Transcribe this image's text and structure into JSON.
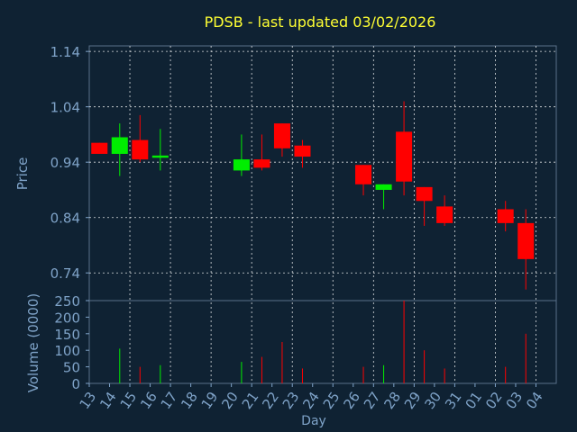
{
  "title": "PDSB - last updated 03/02/2026",
  "colors": {
    "background": "#0f2233",
    "axis_text": "#7fa3c8",
    "title": "#ffff33",
    "up": "#00ee00",
    "down": "#ff0000",
    "grid": "#ffffff"
  },
  "chart_data": [
    {
      "type": "candlestick",
      "ylabel": "Price",
      "ylim": [
        0.69,
        1.15
      ],
      "yticks": [
        "1.14",
        "1.04",
        "0.94",
        "0.84",
        "0.74"
      ],
      "categories": [
        "13",
        "14",
        "15",
        "16",
        "17",
        "18",
        "19",
        "20",
        "21",
        "22",
        "23",
        "24",
        "25",
        "26",
        "27",
        "28",
        "29",
        "30",
        "31",
        "01",
        "02",
        "03",
        "04"
      ],
      "candles": [
        {
          "x": "13",
          "open": 0.975,
          "high": 0.975,
          "low": 0.955,
          "close": 0.955
        },
        {
          "x": "14",
          "open": 0.955,
          "high": 1.01,
          "low": 0.915,
          "close": 0.985
        },
        {
          "x": "15",
          "open": 0.98,
          "high": 1.025,
          "low": 0.94,
          "close": 0.945
        },
        {
          "x": "16",
          "open": 0.948,
          "high": 1.0,
          "low": 0.925,
          "close": 0.952
        },
        {
          "x": "20",
          "open": 0.925,
          "high": 0.99,
          "low": 0.915,
          "close": 0.945
        },
        {
          "x": "21",
          "open": 0.945,
          "high": 0.99,
          "low": 0.925,
          "close": 0.93
        },
        {
          "x": "22",
          "open": 1.01,
          "high": 1.01,
          "low": 0.95,
          "close": 0.965
        },
        {
          "x": "23",
          "open": 0.97,
          "high": 0.98,
          "low": 0.93,
          "close": 0.95
        },
        {
          "x": "26",
          "open": 0.935,
          "high": 0.935,
          "low": 0.88,
          "close": 0.9
        },
        {
          "x": "27",
          "open": 0.89,
          "high": 0.9,
          "low": 0.855,
          "close": 0.9
        },
        {
          "x": "28",
          "open": 0.995,
          "high": 1.05,
          "low": 0.88,
          "close": 0.905
        },
        {
          "x": "29",
          "open": 0.895,
          "high": 0.895,
          "low": 0.825,
          "close": 0.87
        },
        {
          "x": "30",
          "open": 0.86,
          "high": 0.88,
          "low": 0.825,
          "close": 0.83
        },
        {
          "x": "02",
          "open": 0.855,
          "high": 0.87,
          "low": 0.815,
          "close": 0.83
        },
        {
          "x": "03",
          "open": 0.83,
          "high": 0.855,
          "low": 0.71,
          "close": 0.765
        }
      ]
    },
    {
      "type": "bar",
      "xlabel": "Day",
      "ylabel": "Volume (0000)",
      "ylim": [
        0,
        250
      ],
      "yticks": [
        "250",
        "200",
        "150",
        "100",
        "50",
        "0"
      ],
      "categories": [
        "13",
        "14",
        "15",
        "16",
        "17",
        "18",
        "19",
        "20",
        "21",
        "22",
        "23",
        "24",
        "25",
        "26",
        "27",
        "28",
        "29",
        "30",
        "31",
        "01",
        "02",
        "03",
        "04"
      ],
      "values": [
        {
          "x": "14",
          "volume": 105,
          "dir": "up"
        },
        {
          "x": "15",
          "volume": 50,
          "dir": "down"
        },
        {
          "x": "16",
          "volume": 55,
          "dir": "up"
        },
        {
          "x": "20",
          "volume": 65,
          "dir": "up"
        },
        {
          "x": "21",
          "volume": 80,
          "dir": "down"
        },
        {
          "x": "22",
          "volume": 125,
          "dir": "down"
        },
        {
          "x": "23",
          "volume": 45,
          "dir": "down"
        },
        {
          "x": "26",
          "volume": 50,
          "dir": "down"
        },
        {
          "x": "27",
          "volume": 55,
          "dir": "up"
        },
        {
          "x": "28",
          "volume": 250,
          "dir": "down"
        },
        {
          "x": "29",
          "volume": 100,
          "dir": "down"
        },
        {
          "x": "30",
          "volume": 45,
          "dir": "down"
        },
        {
          "x": "02",
          "volume": 50,
          "dir": "down"
        },
        {
          "x": "03",
          "volume": 150,
          "dir": "down"
        }
      ]
    }
  ]
}
